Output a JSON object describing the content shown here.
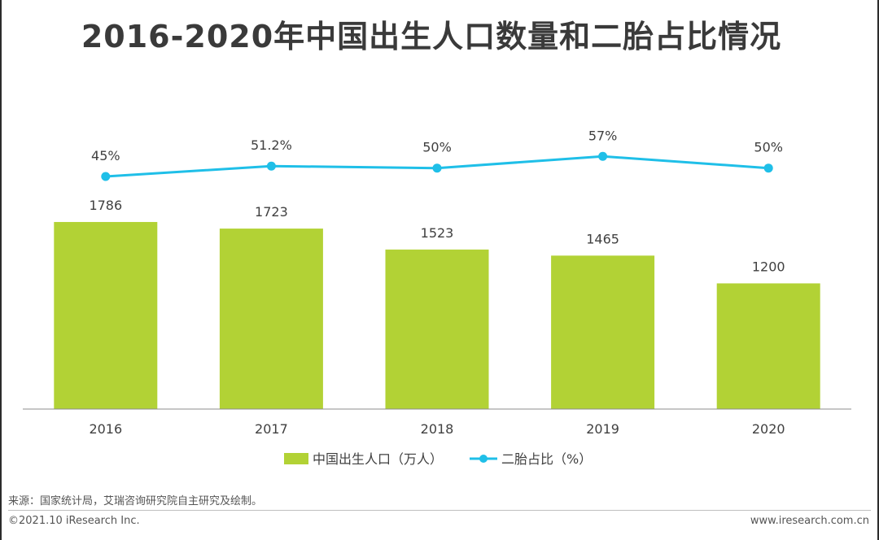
{
  "title": "2016-2020年中国出生人口数量和二胎占比情况",
  "chart_data": {
    "type": "bar",
    "categories": [
      "2016",
      "2017",
      "2018",
      "2019",
      "2020"
    ],
    "series": [
      {
        "name": "中国出生人口（万人）",
        "kind": "bar",
        "color": "#b2d235",
        "values": [
          1786,
          1723,
          1523,
          1465,
          1200
        ],
        "labels": [
          "1786",
          "1723",
          "1523",
          "1465",
          "1200"
        ]
      },
      {
        "name": "二胎占比（%）",
        "kind": "line",
        "color": "#1fbfe8",
        "values": [
          45,
          51.2,
          50,
          57,
          50
        ],
        "labels": [
          "45%",
          "51.2%",
          "50%",
          "57%",
          "50%"
        ]
      }
    ],
    "bar_ylim": [
      0,
      2000
    ],
    "line_ylim": [
      0,
      100
    ],
    "grid": false,
    "legend": "bottom-center"
  },
  "footer": {
    "source": "来源：国家统计局，艾瑞咨询研究院自主研究及绘制。",
    "copyright": "©2021.10 iResearch Inc.",
    "website": "www.iresearch.com.cn"
  }
}
